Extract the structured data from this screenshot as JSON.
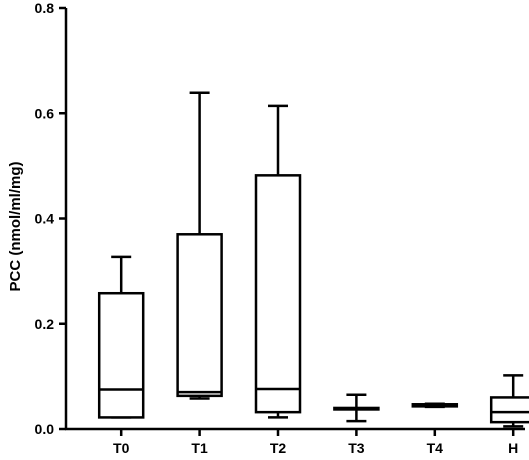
{
  "chart_data": {
    "type": "box",
    "title": "",
    "xlabel": "",
    "ylabel": "PCC (nmol/ml/mg)",
    "ylim": [
      0,
      0.8
    ],
    "yticks": [
      0.0,
      0.2,
      0.4,
      0.6,
      0.8
    ],
    "ytick_labels": [
      "0.0",
      "0.2",
      "0.4",
      "0.6",
      "0.8"
    ],
    "grid": false,
    "legend": "none",
    "colors": {
      "stroke": "#000000",
      "fill": "#ffffff"
    },
    "categories": [
      "T0",
      "T1",
      "T2",
      "T3",
      "T4",
      "H"
    ],
    "boxes": [
      {
        "min": 0.022,
        "q1": 0.022,
        "median": 0.075,
        "q3": 0.258,
        "max": 0.327
      },
      {
        "min": 0.058,
        "q1": 0.063,
        "median": 0.07,
        "q3": 0.37,
        "max": 0.639
      },
      {
        "min": 0.022,
        "q1": 0.032,
        "median": 0.076,
        "q3": 0.482,
        "max": 0.614
      },
      {
        "min": 0.015,
        "q1": 0.038,
        "median": 0.039,
        "q3": 0.04,
        "max": 0.065
      },
      {
        "min": 0.042,
        "q1": 0.043,
        "median": 0.045,
        "q3": 0.047,
        "max": 0.048
      },
      {
        "min": 0.005,
        "q1": 0.013,
        "median": 0.032,
        "q3": 0.06,
        "max": 0.102
      }
    ]
  }
}
